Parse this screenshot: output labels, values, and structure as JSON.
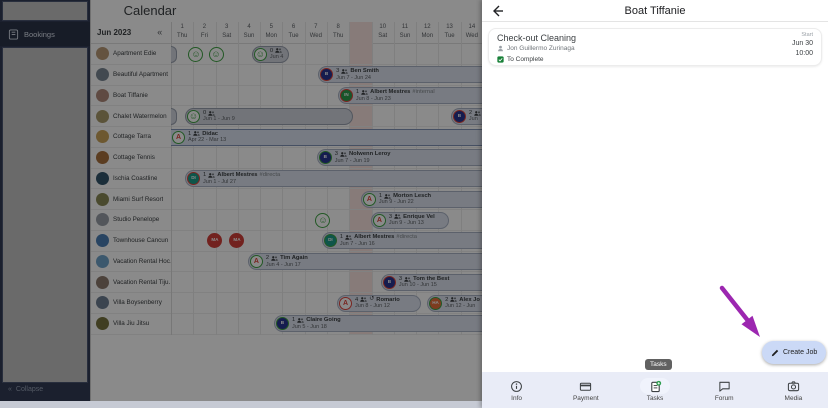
{
  "sidebar": {
    "bookings_label": "Bookings",
    "collapse_icon": "«",
    "collapse_label": "Collapse"
  },
  "calendar": {
    "title": "Calendar",
    "month_label": "Jun 2023",
    "collapse_columns_icon": "«",
    "today_index": 8,
    "days": [
      {
        "num": "1",
        "dow": "Thu"
      },
      {
        "num": "2",
        "dow": "Fri"
      },
      {
        "num": "3",
        "dow": "Sat"
      },
      {
        "num": "4",
        "dow": "Sun"
      },
      {
        "num": "5",
        "dow": "Mon"
      },
      {
        "num": "6",
        "dow": "Tue"
      },
      {
        "num": "7",
        "dow": "Wed"
      },
      {
        "num": "8",
        "dow": "Thu"
      },
      {
        "num": "9",
        "dow": "Fri"
      },
      {
        "num": "10",
        "dow": "Sat"
      },
      {
        "num": "11",
        "dow": "Sun"
      },
      {
        "num": "12",
        "dow": "Mon"
      },
      {
        "num": "13",
        "dow": "Tue"
      },
      {
        "num": "14",
        "dow": "Wed"
      }
    ],
    "properties": [
      {
        "name": "Apartment Edie",
        "color": "#b99a77"
      },
      {
        "name": "Beautiful Apartment",
        "color": "#7b8894"
      },
      {
        "name": "Boat Tiffanie",
        "color": "#b08a7a"
      },
      {
        "name": "Chalet Watermelon",
        "color": "#a89a6a"
      },
      {
        "name": "Cottage Tarra",
        "color": "#c9a35a"
      },
      {
        "name": "Cottage Tennis",
        "color": "#a9713d"
      },
      {
        "name": "Ischia Coastline",
        "color": "#33556b"
      },
      {
        "name": "Miami Surf Resort",
        "color": "#8a8a55"
      },
      {
        "name": "Studio Penelope",
        "color": "#9aa0a8"
      },
      {
        "name": "Townhouse Cancun",
        "color": "#4a7fb5"
      },
      {
        "name": "Vacation Rental Hoc…",
        "color": "#6fa3c9"
      },
      {
        "name": "Vacation Rental Tiju…",
        "color": "#8d7a6d"
      },
      {
        "name": "Villa Boysenberry",
        "color": "#6e7f93"
      },
      {
        "name": "Villa Jiu Jitsu",
        "color": "#77743f"
      }
    ],
    "events": [
      {
        "row": 0,
        "kind": "stub"
      },
      {
        "row": 0,
        "kind": "avatar",
        "day": 2.12,
        "avatar": {
          "type": "smiley",
          "ring": "#3fa344"
        }
      },
      {
        "row": 0,
        "kind": "avatar",
        "day": 3.02,
        "avatar": {
          "type": "smiley",
          "ring": "#3fa344"
        }
      },
      {
        "row": 0,
        "kind": "pill",
        "start": 4.63,
        "end": 6.29,
        "cut": "",
        "style": "gray",
        "avatar": {
          "type": "smiley",
          "ring": "#3fa344"
        },
        "count": "0",
        "name": "",
        "tag": "",
        "dates": "Jun 4"
      },
      {
        "row": 1,
        "kind": "pill",
        "start": 7.6,
        "end": 15,
        "cut": "r",
        "style": "blue",
        "avatar": {
          "type": "letter",
          "text": "B",
          "bg": "#283593",
          "ring": "#e0453c"
        },
        "count": "3",
        "name": "Ben Smith",
        "tag": "",
        "dates": "Jun 7 - Jun 24"
      },
      {
        "row": 2,
        "kind": "pill",
        "start": 8.49,
        "end": 15,
        "cut": "r",
        "style": "blue",
        "avatar": {
          "type": "letter",
          "text": "IN",
          "bg": "#2e9e4f",
          "ring": "#e0453c"
        },
        "count": "1",
        "name": "Albert Mestres",
        "tag": "#internal",
        "dates": "Jun 8 - Jun 23"
      },
      {
        "row": 3,
        "kind": "stub"
      },
      {
        "row": 3,
        "kind": "pill",
        "start": 1.63,
        "end": 9.17,
        "cut": "",
        "style": "gray",
        "avatar": {
          "type": "smiley",
          "ring": "#3fa344"
        },
        "count": "0",
        "name": "",
        "tag": "",
        "dates": "Jun 1 - Jun 9"
      },
      {
        "row": 3,
        "kind": "pill",
        "start": 13.56,
        "end": 15,
        "cut": "r",
        "style": "blue",
        "avatar": {
          "type": "letter",
          "text": "B",
          "bg": "#283593",
          "ring": "#e0453c"
        },
        "count": "2",
        "name": "",
        "tag": "",
        "dates": "Jun"
      },
      {
        "row": 4,
        "kind": "pill",
        "start": 1,
        "end": 15,
        "cut": "lr",
        "style": "bar",
        "avatar": {
          "type": "airbnb",
          "ring": "#3fa344"
        },
        "count": "1",
        "name": "Didac",
        "tag": "",
        "dates": "Apr 22 - Mar 13"
      },
      {
        "row": 5,
        "kind": "pill",
        "start": 7.54,
        "end": 15,
        "cut": "r",
        "style": "blue",
        "avatar": {
          "type": "letter",
          "text": "B",
          "bg": "#283593",
          "ring": "#3fa344"
        },
        "count": "3",
        "name": "Nolwenn Leroy",
        "tag": "",
        "dates": "Jun 7 - Jun 19"
      },
      {
        "row": 6,
        "kind": "pill",
        "start": 1.63,
        "end": 15,
        "cut": "r",
        "style": "blue",
        "avatar": {
          "type": "letter",
          "text": "DI",
          "bg": "#1b9e8a",
          "ring": "#e0453c"
        },
        "count": "1",
        "name": "Albert Mestres",
        "tag": "#directa",
        "dates": "Jun 1 - Jul 27"
      },
      {
        "row": 7,
        "kind": "pill",
        "start": 9.52,
        "end": 15,
        "cut": "r",
        "style": "blue",
        "avatar": {
          "type": "airbnb",
          "ring": "#3fa344"
        },
        "count": "1",
        "name": "Morton Lesch",
        "tag": "",
        "dates": "Jun 9 - Jun 22"
      },
      {
        "row": 8,
        "kind": "avatar",
        "day": 7.82,
        "avatar": {
          "type": "smiley",
          "ring": "#3fa344"
        }
      },
      {
        "row": 8,
        "kind": "pill",
        "start": 9.97,
        "end": 13.47,
        "cut": "",
        "style": "blue",
        "avatar": {
          "type": "airbnb",
          "ring": "#3fa344"
        },
        "count": "3",
        "name": "Enrique Vel",
        "tag": "",
        "dates": "Jun 9 - Jun 13"
      },
      {
        "row": 9,
        "kind": "avatar",
        "day": 2.97,
        "avatar": {
          "type": "letter",
          "text": "MA",
          "bg": "#d2403a",
          "ring": "#d2403a"
        }
      },
      {
        "row": 9,
        "kind": "avatar",
        "day": 3.96,
        "avatar": {
          "type": "letter",
          "text": "MA",
          "bg": "#d2403a",
          "ring": "#d2403a"
        }
      },
      {
        "row": 9,
        "kind": "pill",
        "start": 7.77,
        "end": 15,
        "cut": "r",
        "style": "blue",
        "avatar": {
          "type": "letter",
          "text": "DI",
          "bg": "#1b9e8a",
          "ring": "#3fa344"
        },
        "count": "1",
        "name": "Albert Mestres",
        "tag": "#directa",
        "dates": "Jun 7 - Jun 16"
      },
      {
        "row": 10,
        "kind": "pill",
        "start": 4.45,
        "end": 15,
        "cut": "r",
        "style": "blue",
        "avatar": {
          "type": "airbnb",
          "ring": "#3fa344"
        },
        "count": "2",
        "name": "Tim Again",
        "tag": "",
        "dates": "Jun 4 - Jun 17"
      },
      {
        "row": 11,
        "kind": "pill",
        "start": 10.42,
        "end": 15,
        "cut": "r",
        "style": "blue",
        "avatar": {
          "type": "letter",
          "text": "B",
          "bg": "#283593",
          "ring": "#e0453c"
        },
        "count": "3",
        "name": "Tom the Best",
        "tag": "",
        "dates": "Jun 10 - Jun 15"
      },
      {
        "row": 12,
        "kind": "pill",
        "start": 8.45,
        "end": 12.22,
        "cut": "",
        "style": "blue",
        "avatar": {
          "type": "airbnb",
          "ring": "#e0453c"
        },
        "count": "4",
        "name": "Romario",
        "tag": "",
        "extra_icon": "returning-guest-icon",
        "dates": "Jun 8 - Jun 12"
      },
      {
        "row": 12,
        "kind": "pill",
        "start": 12.49,
        "end": 15,
        "cut": "r",
        "style": "blue",
        "avatar": {
          "type": "letter",
          "text": "HA",
          "bg": "#e8703a",
          "ring": "#3fa344"
        },
        "count": "2",
        "name": "Alex Jo",
        "tag": "",
        "dates": "Jun 12 - Jun"
      },
      {
        "row": 13,
        "kind": "pill",
        "start": 5.62,
        "end": 15,
        "cut": "r",
        "style": "blue",
        "avatar": {
          "type": "letter",
          "text": "B",
          "bg": "#283593",
          "ring": "#3fa344"
        },
        "count": "1",
        "name": "Claire Going",
        "tag": "",
        "dates": "Jun 5 - Jun 18"
      }
    ]
  },
  "panel": {
    "title": "Boat Tiffanie",
    "task": {
      "title": "Check-out Cleaning",
      "assignee": "Jon Guillermo Zurinaga",
      "status": "To Complete",
      "start_label": "Start",
      "start_date": "Jun 30",
      "start_time": "10:00"
    },
    "tooltip": "Tasks",
    "create_job_label": "Create Job",
    "nav": [
      {
        "label": "Info",
        "icon": "info-icon",
        "active": false
      },
      {
        "label": "Payment",
        "icon": "payment-icon",
        "active": false
      },
      {
        "label": "Tasks",
        "icon": "tasks-icon",
        "active": true
      },
      {
        "label": "Forum",
        "icon": "forum-icon",
        "active": false
      },
      {
        "label": "Media",
        "icon": "media-icon",
        "active": false
      }
    ],
    "arrow_color": "#9c27b0"
  }
}
